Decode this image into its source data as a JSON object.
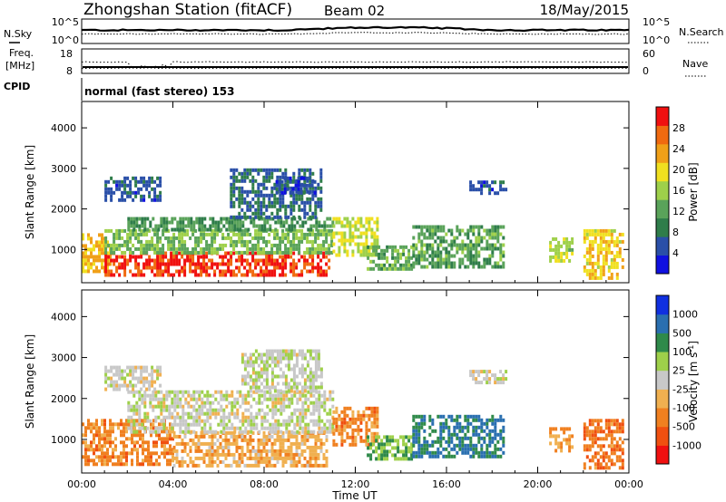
{
  "header": {
    "station": "Zhongshan Station (fitACF)",
    "beam": "Beam 02",
    "date": "18/May/2015"
  },
  "summary_panels": {
    "nsky": {
      "left_label": "N.Sky",
      "right_label": "N.Search",
      "left_ticks": [
        "10^5",
        "10^0"
      ],
      "right_ticks": [
        "10^5",
        "10^0"
      ]
    },
    "freq": {
      "left_label_line1": "Freq.",
      "left_label_line2": "[MHz]",
      "right_label": "Nave",
      "left_ticks": [
        "18",
        "8"
      ],
      "right_ticks": [
        "60",
        "0"
      ]
    },
    "cpid": {
      "label": "CPID",
      "text": "normal (fast stereo) 153"
    }
  },
  "colors": {
    "power_scale": [
      "#1010e0",
      "#2a4fa8",
      "#2f7d4a",
      "#5aa35a",
      "#9ed04a",
      "#f0e020",
      "#f0a018",
      "#f06a10",
      "#f01010"
    ],
    "velocity_scale": [
      "#f01010",
      "#f05010",
      "#f08020",
      "#f0b050",
      "#c8c8c8",
      "#9ed04a",
      "#2f8a4a",
      "#2a6fb0",
      "#1030e0"
    ]
  },
  "chart_data": [
    {
      "type": "heatmap",
      "title": "",
      "xlabel": "",
      "ylabel": "Slant Range [km]",
      "x_ticks": [
        "00:00",
        "04:00",
        "08:00",
        "12:00",
        "16:00",
        "20:00",
        "00:00"
      ],
      "y_ticks": [
        "1000",
        "2000",
        "3000",
        "4000"
      ],
      "ylim": [
        180,
        4650
      ],
      "colorbar": {
        "label": "Power [dB]",
        "ticks": [
          "4",
          "8",
          "12",
          "16",
          "20",
          "24",
          "28"
        ],
        "range": [
          0,
          32
        ]
      },
      "blobs": [
        {
          "t0": 0.0,
          "t1": 1.2,
          "r0": 500,
          "r1": 1400,
          "value": 22
        },
        {
          "t0": 1.0,
          "t1": 10.8,
          "r0": 400,
          "r1": 950,
          "value": 29
        },
        {
          "t0": 1.0,
          "t1": 11.0,
          "r0": 950,
          "r1": 1500,
          "value": 14
        },
        {
          "t0": 2.0,
          "t1": 11.0,
          "r0": 1500,
          "r1": 1800,
          "value": 11
        },
        {
          "t0": 1.0,
          "t1": 3.5,
          "r0": 2200,
          "r1": 2800,
          "value": 6
        },
        {
          "t0": 6.5,
          "t1": 10.5,
          "r0": 1800,
          "r1": 3000,
          "value": 7
        },
        {
          "t0": 8.5,
          "t1": 10.2,
          "r0": 2400,
          "r1": 2800,
          "value": 5
        },
        {
          "t0": 11.0,
          "t1": 13.0,
          "r0": 900,
          "r1": 1800,
          "value": 18
        },
        {
          "t0": 12.5,
          "t1": 14.5,
          "r0": 500,
          "r1": 1100,
          "value": 13
        },
        {
          "t0": 14.5,
          "t1": 18.5,
          "r0": 600,
          "r1": 1600,
          "value": 12
        },
        {
          "t0": 17.0,
          "t1": 18.6,
          "r0": 2400,
          "r1": 2700,
          "value": 6
        },
        {
          "t0": 20.5,
          "t1": 21.5,
          "r0": 700,
          "r1": 1300,
          "value": 17
        },
        {
          "t0": 22.0,
          "t1": 23.7,
          "r0": 300,
          "r1": 1500,
          "value": 20
        }
      ]
    },
    {
      "type": "heatmap",
      "title": "",
      "xlabel": "Time UT",
      "ylabel": "Slant Range [km]",
      "x_ticks": [
        "00:00",
        "04:00",
        "08:00",
        "12:00",
        "16:00",
        "20:00",
        "00:00"
      ],
      "y_ticks": [
        "1000",
        "2000",
        "3000",
        "4000"
      ],
      "ylim": [
        180,
        4650
      ],
      "colorbar": {
        "label": "Velocity [m s^-1]",
        "ticks": [
          "1000",
          "500",
          "100",
          "25",
          "-25",
          "-100",
          "-500",
          "-1000"
        ],
        "range": [
          -1200,
          1200
        ]
      },
      "blobs": [
        {
          "t0": 0.0,
          "t1": 4.0,
          "r0": 400,
          "r1": 1500,
          "value": -500
        },
        {
          "t0": 4.0,
          "t1": 10.8,
          "r0": 400,
          "r1": 1200,
          "value": -300
        },
        {
          "t0": 2.0,
          "t1": 11.0,
          "r0": 1200,
          "r1": 2200,
          "value": 20
        },
        {
          "t0": 7.0,
          "t1": 10.5,
          "r0": 2200,
          "r1": 3200,
          "value": 60
        },
        {
          "t0": 1.0,
          "t1": 3.5,
          "r0": 2200,
          "r1": 2800,
          "value": 0
        },
        {
          "t0": 11.0,
          "t1": 13.0,
          "r0": 900,
          "r1": 1800,
          "value": -500
        },
        {
          "t0": 12.5,
          "t1": 14.5,
          "r0": 500,
          "r1": 1100,
          "value": 400
        },
        {
          "t0": 14.5,
          "t1": 18.5,
          "r0": 600,
          "r1": 1600,
          "value": 700
        },
        {
          "t0": 17.0,
          "t1": 18.6,
          "r0": 2400,
          "r1": 2700,
          "value": 0
        },
        {
          "t0": 20.5,
          "t1": 21.5,
          "r0": 700,
          "r1": 1300,
          "value": -400
        },
        {
          "t0": 22.0,
          "t1": 23.7,
          "r0": 300,
          "r1": 1500,
          "value": -600
        }
      ]
    }
  ]
}
